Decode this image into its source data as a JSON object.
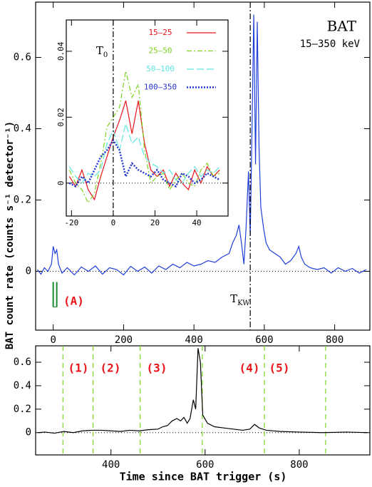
{
  "chart_data": [
    {
      "type": "line",
      "title": "BAT",
      "subtitle": "15–350 keV",
      "y_label": "BAT count rate (counts s⁻¹ detector⁻¹)",
      "xlim": [
        -50,
        900
      ],
      "ylim": [
        -0.165,
        0.755
      ],
      "xticks": [
        0,
        200,
        400,
        600,
        800
      ],
      "yticks": [
        0,
        0.2,
        0.4,
        0.6
      ],
      "x": [
        -45,
        -35,
        -25,
        -15,
        -5,
        0,
        5,
        10,
        15,
        25,
        40,
        60,
        80,
        100,
        120,
        140,
        160,
        180,
        200,
        220,
        240,
        260,
        280,
        300,
        320,
        340,
        360,
        380,
        400,
        420,
        440,
        460,
        480,
        500,
        510,
        520,
        528,
        535,
        542,
        548,
        555,
        560,
        565,
        570,
        575,
        580,
        585,
        590,
        598,
        605,
        615,
        630,
        645,
        660,
        675,
        690,
        698,
        705,
        715,
        730,
        750,
        770,
        790,
        810,
        830,
        850,
        870,
        890
      ],
      "series": [
        {
          "color": "#1f3fd8",
          "values": [
            0.005,
            -0.008,
            0.01,
            0.0,
            0.02,
            0.07,
            0.05,
            0.06,
            0.02,
            -0.005,
            0.01,
            -0.01,
            0.012,
            0.0,
            0.015,
            -0.008,
            0.01,
            0.005,
            -0.01,
            0.014,
            0.0,
            0.012,
            -0.005,
            0.015,
            0.005,
            0.02,
            0.01,
            0.025,
            0.015,
            0.02,
            0.03,
            0.025,
            0.04,
            0.05,
            0.08,
            0.1,
            0.13,
            0.08,
            0.02,
            0.12,
            0.28,
            0.1,
            0.4,
            0.72,
            0.3,
            0.7,
            0.35,
            0.18,
            0.12,
            0.08,
            0.06,
            0.05,
            0.04,
            0.02,
            0.03,
            0.05,
            0.07,
            0.04,
            0.02,
            0.01,
            0.005,
            0.01,
            -0.005,
            0.01,
            0.0,
            0.008,
            -0.005,
            0.005
          ]
        }
      ],
      "vline": {
        "x": 560,
        "label": "T",
        "sub": "KW"
      },
      "event": {
        "label": "(A)",
        "x": [
          0,
          10
        ]
      }
    },
    {
      "type": "line",
      "xlim": [
        -22.5,
        55
      ],
      "ylim": [
        -0.01,
        0.0495
      ],
      "xticks": [
        -20,
        0,
        20,
        40
      ],
      "yticks": [
        0,
        0.02,
        0.04
      ],
      "vline": {
        "x": 0,
        "label": "T",
        "sub": "0"
      },
      "x": [
        -21,
        -18,
        -15,
        -12,
        -9,
        -6,
        -3,
        0,
        3,
        6,
        9,
        12,
        15,
        18,
        21,
        24,
        27,
        30,
        33,
        36,
        39,
        42,
        45,
        48,
        51
      ],
      "series": [
        {
          "name": "15–25",
          "color": "#e8141a",
          "style": "solid",
          "values": [
            0.002,
            -0.001,
            0.004,
            -0.002,
            -0.005,
            0.002,
            0.008,
            0.014,
            0.019,
            0.025,
            0.015,
            0.025,
            0.012,
            0.004,
            0.002,
            0.004,
            -0.001,
            0.003,
            0.0,
            -0.002,
            0.004,
            0.0,
            0.005,
            0.002,
            0.004
          ]
        },
        {
          "name": "25–50",
          "color": "#7ed321",
          "style": "dashdot",
          "values": [
            0.004,
            0.0,
            -0.002,
            -0.006,
            -0.003,
            0.006,
            0.017,
            0.02,
            0.023,
            0.034,
            0.026,
            0.03,
            0.01,
            0.0,
            0.002,
            0.003,
            -0.002,
            0.001,
            0.003,
            0.0,
            -0.001,
            0.004,
            0.006,
            0.002,
            0.003
          ]
        },
        {
          "name": "50–100",
          "color": "#5fe8e0",
          "style": "longdash",
          "values": [
            0.005,
            0.002,
            0.0,
            0.003,
            0.002,
            0.004,
            0.012,
            0.016,
            0.01,
            0.018,
            0.012,
            0.014,
            0.008,
            0.006,
            0.005,
            0.003,
            0.004,
            0.001,
            0.0,
            0.003,
            0.005,
            0.002,
            0.004,
            0.003,
            0.005
          ]
        },
        {
          "name": "100–350",
          "color": "#2438d0",
          "style": "dotted",
          "values": [
            0.0,
            -0.001,
            0.002,
            0.0,
            0.004,
            0.008,
            0.01,
            0.013,
            0.01,
            0.002,
            0.006,
            0.004,
            0.003,
            0.002,
            0.004,
            0.001,
            0.0,
            -0.001,
            0.003,
            0.002,
            0.0,
            0.001,
            0.003,
            0.002,
            0.001
          ]
        }
      ]
    },
    {
      "type": "line",
      "x_label": "Time since BAT trigger (s)",
      "xlim": [
        240,
        950
      ],
      "ylim": [
        -0.19,
        0.74
      ],
      "xticks": [
        400,
        600,
        800
      ],
      "yticks": [
        0,
        0.2,
        0.4,
        0.6
      ],
      "x": [
        245,
        260,
        280,
        300,
        320,
        340,
        360,
        380,
        400,
        420,
        440,
        460,
        480,
        500,
        510,
        520,
        530,
        540,
        548,
        555,
        562,
        568,
        575,
        580,
        585,
        590,
        595,
        605,
        620,
        640,
        660,
        680,
        695,
        705,
        715,
        730,
        760,
        800,
        850,
        900,
        945
      ],
      "series": [
        {
          "color": "#000000",
          "values": [
            0,
            0.005,
            -0.005,
            0.01,
            0.0,
            0.015,
            0.02,
            0.02,
            0.015,
            0.01,
            0.02,
            0.015,
            0.025,
            0.03,
            0.05,
            0.06,
            0.1,
            0.12,
            0.1,
            0.13,
            0.08,
            0.12,
            0.28,
            0.2,
            0.72,
            0.6,
            0.15,
            0.08,
            0.05,
            0.04,
            0.03,
            0.02,
            0.03,
            0.07,
            0.04,
            0.02,
            0.01,
            0.005,
            0.0,
            0.005,
            0.0
          ]
        }
      ],
      "intervals": {
        "x": [
          298,
          362,
          462,
          594,
          726,
          856
        ],
        "labels": [
          "(1)",
          "(2)",
          "(3)",
          "(4)",
          "(5)"
        ]
      }
    }
  ]
}
